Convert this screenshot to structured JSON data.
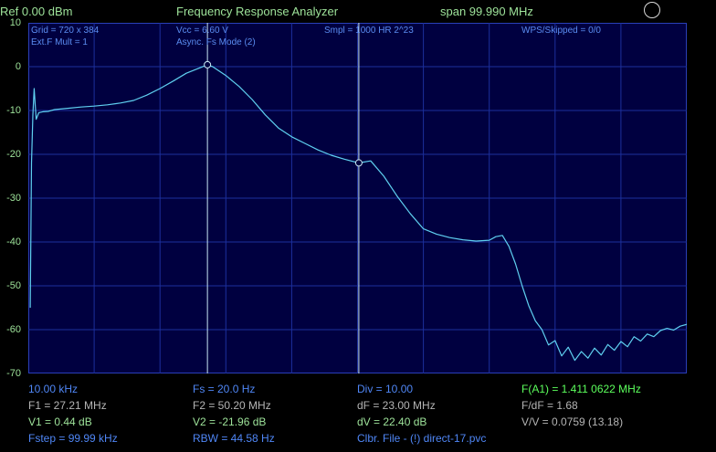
{
  "header": {
    "ref": "Ref  0.00 dBm",
    "title": "Frequency Response Analyzer",
    "span": "span 99.990 MHz"
  },
  "y_axis": {
    "ticks": [
      "10",
      "0",
      "-10",
      "-20",
      "-30",
      "-40",
      "-50",
      "-60",
      "-70"
    ],
    "min": -70,
    "max": 10
  },
  "plot_info": {
    "grid": "Grid = 720 x 384",
    "ext": "Ext.F Mult = 1",
    "vcc": "Vcc = 6.60 V",
    "mode": "Async. Fs Mode (2)",
    "smpl": "Smpl = 1000 HR 2^23",
    "wps": "WPS/Skipped  = 0/0"
  },
  "footer": {
    "col1": [
      "10.00 kHz",
      "F1 = 27.21 MHz",
      "V1 = 0.44 dB",
      "Fstep = 99.99 kHz"
    ],
    "col2": [
      "Fs = 20.0 Hz",
      "F2 = 50.20 MHz",
      "V2 = -21.96 dB",
      "RBW = 44.58 Hz"
    ],
    "col3": [
      "Div = 10.00",
      "dF = 23.00 MHz",
      "dV = 22.40 dB",
      "Clbr. File - (!) direct-17.pvc"
    ],
    "col4": [
      "F(A1) = 1.411 0622 MHz",
      "F/dF = 1.68",
      "V/V = 0.0759 (13.18)"
    ]
  },
  "markers": [
    {
      "freq_mhz": 27.21,
      "level_db": 0.44
    },
    {
      "freq_mhz": 50.2,
      "level_db": -21.96
    }
  ],
  "colors": {
    "plot_background": "#000040",
    "grid": "#1c2f9c",
    "trace": "#5fd0f0",
    "marker_line": "#c8e6f2",
    "header_text": "#9ee39a",
    "info_text": "#5a8cf0",
    "accent": "#5cff5c"
  },
  "chart_data": {
    "type": "line",
    "title": "Frequency Response Analyzer",
    "xlabel": "",
    "ylabel": "",
    "xlim": [
      0.01,
      100.0
    ],
    "ylim": [
      -70,
      10
    ],
    "grid": true,
    "series": [
      {
        "x": [
          0.3,
          0.5,
          0.7,
          0.9,
          1.2,
          1.6,
          2.2,
          3,
          4,
          6,
          8,
          10,
          12,
          14,
          16,
          18,
          20,
          22,
          24,
          26,
          27.21,
          28,
          30,
          32,
          34,
          36,
          38,
          40,
          42,
          44,
          46,
          48,
          50.2,
          52,
          54,
          56,
          58,
          60,
          62,
          64,
          66,
          68,
          70,
          71,
          72,
          73,
          74,
          75,
          76,
          77,
          78,
          79,
          80,
          81,
          82,
          83,
          84,
          85,
          86,
          87,
          88,
          89,
          90,
          91,
          92,
          93,
          94,
          95,
          96,
          97,
          98,
          99,
          100
        ],
        "y": [
          -55,
          -22,
          -11,
          -5,
          -12,
          -10.5,
          -10.3,
          -10.2,
          -9.8,
          -9.5,
          -9.2,
          -9,
          -8.7,
          -8.3,
          -7.7,
          -6.5,
          -5,
          -3.3,
          -1.5,
          -0.3,
          0.44,
          0,
          -2,
          -4.5,
          -7.5,
          -11,
          -14,
          -16,
          -17.5,
          -19,
          -20.2,
          -21.1,
          -21.96,
          -21.5,
          -25,
          -29.5,
          -33.5,
          -37,
          -38.2,
          -39,
          -39.5,
          -39.8,
          -39.6,
          -38.8,
          -38.5,
          -41,
          -45,
          -50,
          -54.5,
          -58,
          -60,
          -63.5,
          -62.5,
          -66,
          -64,
          -67,
          -65,
          -66.5,
          -64.2,
          -65.8,
          -63.4,
          -64.7,
          -62.7,
          -63.9,
          -61.6,
          -62.6,
          -61,
          -61.6,
          -60.2,
          -59.7,
          -60.1,
          -59.2,
          -58.8
        ]
      }
    ]
  }
}
